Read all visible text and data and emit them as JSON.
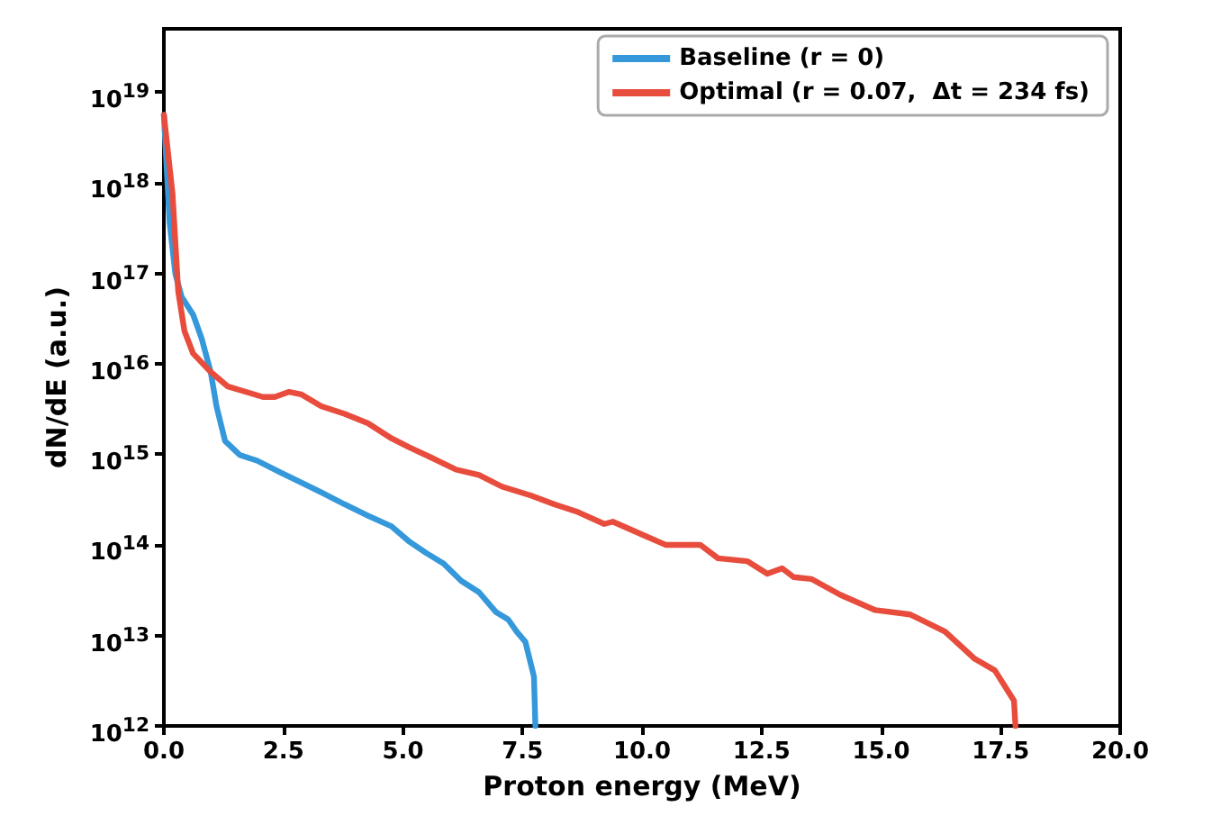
{
  "chart_data": {
    "type": "line",
    "xlabel": "Proton energy (MeV)",
    "ylabel": "dN/dE (a.u.)",
    "log": "y",
    "grid": false,
    "legend": "top right",
    "marker": "none",
    "line_style": "solid",
    "xlim": [
      0,
      20
    ],
    "xticks": [
      {
        "value": 0,
        "label": "0.0"
      },
      {
        "value": 2.5,
        "label": "2.5"
      },
      {
        "value": 5,
        "label": "5.0"
      },
      {
        "value": 7.5,
        "label": "7.5"
      },
      {
        "value": 10,
        "label": "10.0"
      },
      {
        "value": 12.5,
        "label": "12.5"
      },
      {
        "value": 15,
        "label": "15.0"
      },
      {
        "value": 17.5,
        "label": "17.5"
      },
      {
        "value": 20,
        "label": "20.0"
      }
    ],
    "ylim": [
      1000000000000.0,
      5e+19
    ],
    "yticks": [
      {
        "value": 1000000000000.0,
        "label": "10$^{12}$"
      },
      {
        "value": 10000000000000.0,
        "label": "10$^{13}$"
      },
      {
        "value": 100000000000000.0,
        "label": "10$^{14}$"
      },
      {
        "value": 1000000000000000.0,
        "label": "10$^{15}$"
      },
      {
        "value": 1e+16,
        "label": "10$^{16}$"
      },
      {
        "value": 1e+17,
        "label": "10$^{17}$"
      },
      {
        "value": 1e+18,
        "label": "10$^{18}$"
      },
      {
        "value": 1e+19,
        "label": "10$^{19}$"
      }
    ],
    "series": [
      {
        "name": "Baseline (r = 0)",
        "color": "#3498db",
        "x": [
          0,
          0.12,
          0.24,
          0.37,
          0.61,
          0.79,
          0.98,
          1.1,
          1.28,
          1.59,
          1.95,
          2.44,
          2.8,
          3.29,
          3.78,
          4.27,
          4.76,
          5.12,
          5.49,
          5.85,
          6.22,
          6.59,
          6.95,
          7.2,
          7.38,
          7.56,
          7.74,
          7.77
        ],
        "values": [
          5.6e+18,
          3.6e+17,
          9.8e+16,
          5.5e+16,
          3.5e+16,
          1.9e+16,
          8100000000000000.0,
          3400000000000000.0,
          1400000000000000.0,
          980000000000000.0,
          850000000000000.0,
          630000000000000.0,
          510000000000000.0,
          380000000000000.0,
          280000000000000.0,
          210000000000000.0,
          160000000000000.0,
          110000000000000.0,
          81000000000000.0,
          62000000000000.0,
          40000000000000.0,
          30000000000000.0,
          18000000000000.0,
          15000000000000.0,
          11000000000000.0,
          8500000000000.0,
          3500000000000.0,
          1000000000000.0
        ]
      },
      {
        "name": "Optimal (r = 0.07,  Δt = 234 fs)",
        "color": "#e74c3c",
        "x": [
          0,
          0.18,
          0.3,
          0.43,
          0.61,
          0.98,
          1.34,
          1.71,
          2.07,
          2.32,
          2.62,
          2.87,
          3.29,
          3.78,
          4.27,
          4.76,
          5.12,
          5.61,
          6.1,
          6.59,
          7.07,
          7.68,
          8.17,
          8.66,
          9.21,
          9.39,
          10.0,
          10.49,
          11.22,
          11.59,
          12.2,
          12.62,
          12.93,
          13.17,
          13.54,
          14.15,
          14.88,
          15.61,
          16.34,
          16.96,
          17.38,
          17.78,
          17.81
        ],
        "values": [
          5.6e+18,
          7.6e+17,
          6.3e+16,
          2.3e+16,
          1.3e+16,
          8100000000000000.0,
          5600000000000000.0,
          4900000000000000.0,
          4300000000000000.0,
          4300000000000000.0,
          4900000000000000.0,
          4600000000000000.0,
          3400000000000000.0,
          2800000000000000.0,
          2200000000000000.0,
          1500000000000000.0,
          1200000000000000.0,
          910000000000000.0,
          680000000000000.0,
          590000000000000.0,
          440000000000000.0,
          350000000000000.0,
          280000000000000.0,
          230000000000000.0,
          170000000000000.0,
          180000000000000.0,
          130000000000000.0,
          100000000000000.0,
          100000000000000.0,
          71000000000000.0,
          66000000000000.0,
          48000000000000.0,
          55000000000000.0,
          44000000000000.0,
          42000000000000.0,
          28000000000000.0,
          19000000000000.0,
          17000000000000.0,
          11000000000000.0,
          5500000000000.0,
          4100000000000.0,
          1900000000000.0,
          1000000000000.0
        ]
      }
    ]
  }
}
